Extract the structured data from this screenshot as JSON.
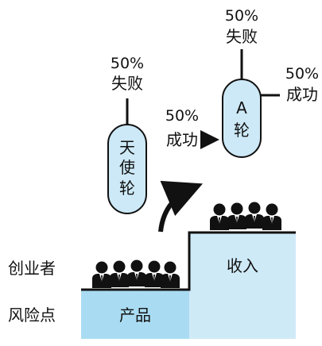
{
  "stages": {
    "angel": [
      "天",
      "使",
      "轮"
    ],
    "round_a": [
      "A",
      "轮"
    ]
  },
  "outcomes": {
    "angel_fail_pct": "50%",
    "angel_fail_label": "失败",
    "angel_success_pct": "50%",
    "angel_success_label": "成功",
    "a_fail_pct": "50%",
    "a_fail_label": "失败",
    "a_success_pct": "50%",
    "a_success_label": "成功"
  },
  "left_labels": {
    "founders": "创业者",
    "risk_point": "风险点"
  },
  "steps": {
    "product": "产品",
    "revenue": "收入"
  },
  "colors": {
    "pill_fill": "#cde9f7",
    "step_fill": "#a9dcf2",
    "step_light": "#cfeaf7",
    "ink": "#111111"
  }
}
